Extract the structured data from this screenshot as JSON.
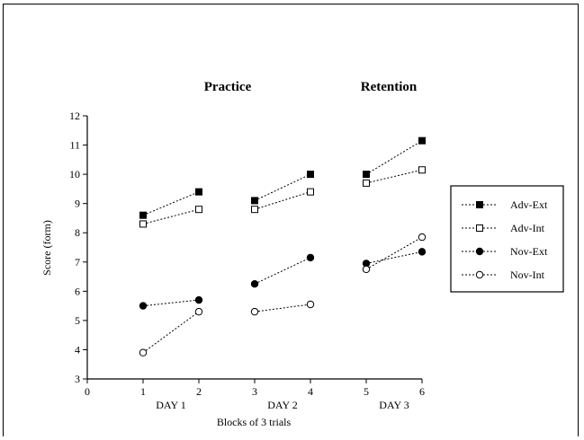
{
  "chart_data": {
    "type": "line",
    "title_left": "Practice",
    "title_right": "Retention",
    "ylabel": "Score (form)",
    "xlabel": "Blocks of 3 trials",
    "ylim": [
      3,
      12
    ],
    "xlim": [
      0,
      6
    ],
    "yticks": [
      3,
      4,
      5,
      6,
      7,
      8,
      9,
      10,
      11,
      12
    ],
    "xticks": [
      0,
      1,
      2,
      3,
      4,
      5,
      6
    ],
    "day_labels": [
      {
        "label": "DAY 1",
        "x": 1.5
      },
      {
        "label": "DAY 2",
        "x": 3.5
      },
      {
        "label": "DAY 3",
        "x": 5.5
      }
    ],
    "legend_position": "right",
    "segments": [
      [
        1,
        2
      ],
      [
        3,
        4
      ],
      [
        5,
        6
      ]
    ],
    "series": [
      {
        "name": "Adv-Ext",
        "marker": "filled-square",
        "x": [
          1,
          2,
          3,
          4,
          5,
          6
        ],
        "values": [
          8.6,
          9.4,
          9.1,
          10.0,
          10.0,
          11.15
        ]
      },
      {
        "name": "Adv-Int",
        "marker": "open-square",
        "x": [
          1,
          2,
          3,
          4,
          5,
          6
        ],
        "values": [
          8.3,
          8.8,
          8.8,
          9.4,
          9.7,
          10.15
        ]
      },
      {
        "name": "Nov-Ext",
        "marker": "filled-circle",
        "x": [
          1,
          2,
          3,
          4,
          5,
          6
        ],
        "values": [
          5.5,
          5.7,
          6.25,
          7.15,
          6.95,
          7.35
        ]
      },
      {
        "name": "Nov-Int",
        "marker": "open-circle",
        "x": [
          1,
          2,
          3,
          4,
          5,
          6
        ],
        "values": [
          3.9,
          5.3,
          5.3,
          5.55,
          6.75,
          7.85
        ]
      }
    ],
    "line_style": "dotted",
    "ink_color": "#000000"
  }
}
